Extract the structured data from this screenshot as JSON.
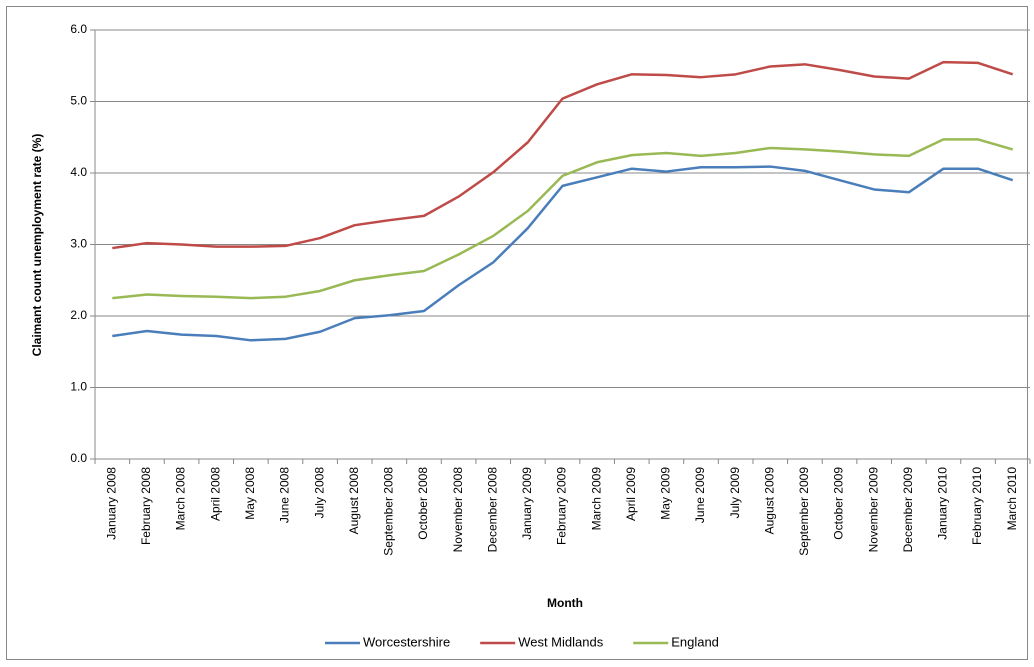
{
  "chart_data": {
    "type": "line",
    "x_label": "Month",
    "y_label": "Claimant count unemployment rate (%)",
    "categories": [
      "January 2008",
      "February 2008",
      "March 2008",
      "April 2008",
      "May 2008",
      "June 2008",
      "July 2008",
      "August 2008",
      "September 2008",
      "October 2008",
      "November 2008",
      "December 2008",
      "January 2009",
      "February 2009",
      "March 2009",
      "April 2009",
      "May 2009",
      "June 2009",
      "July 2009",
      "August 2009",
      "September 2009",
      "October 2009",
      "November 2009",
      "December 2009",
      "January 2010",
      "February 2010",
      "March 2010"
    ],
    "series": [
      {
        "name": "Worcestershire",
        "color": "#4a7ebb",
        "values": [
          1.72,
          1.79,
          1.74,
          1.72,
          1.66,
          1.68,
          1.78,
          1.97,
          2.01,
          2.07,
          2.43,
          2.75,
          3.23,
          3.82,
          3.94,
          4.06,
          4.02,
          4.08,
          4.08,
          4.09,
          4.03,
          3.9,
          3.77,
          3.73,
          4.06,
          4.06,
          3.9
        ]
      },
      {
        "name": "West Midlands",
        "color": "#be4b48",
        "values": [
          2.95,
          3.02,
          3.0,
          2.97,
          2.97,
          2.98,
          3.09,
          3.27,
          3.34,
          3.4,
          3.67,
          4.01,
          4.43,
          5.04,
          5.24,
          5.38,
          5.37,
          5.34,
          5.38,
          5.49,
          5.52,
          5.44,
          5.35,
          5.32,
          5.55,
          5.54,
          5.38
        ]
      },
      {
        "name": "England",
        "color": "#98b954",
        "values": [
          2.25,
          2.3,
          2.28,
          2.27,
          2.25,
          2.27,
          2.35,
          2.5,
          2.57,
          2.63,
          2.86,
          3.12,
          3.47,
          3.96,
          4.15,
          4.25,
          4.28,
          4.24,
          4.28,
          4.35,
          4.33,
          4.3,
          4.26,
          4.24,
          4.47,
          4.47,
          4.33
        ]
      }
    ],
    "ylim": [
      0,
      6
    ],
    "yticks": [
      {
        "value": 0,
        "label": "0.0"
      },
      {
        "value": 1,
        "label": "1.0"
      },
      {
        "value": 2,
        "label": "2.0"
      },
      {
        "value": 3,
        "label": "3.0"
      },
      {
        "value": 4,
        "label": "4.0"
      },
      {
        "value": 5,
        "label": "5.0"
      },
      {
        "value": 6,
        "label": "6.0"
      }
    ],
    "grid": true,
    "legend": "bottom"
  }
}
